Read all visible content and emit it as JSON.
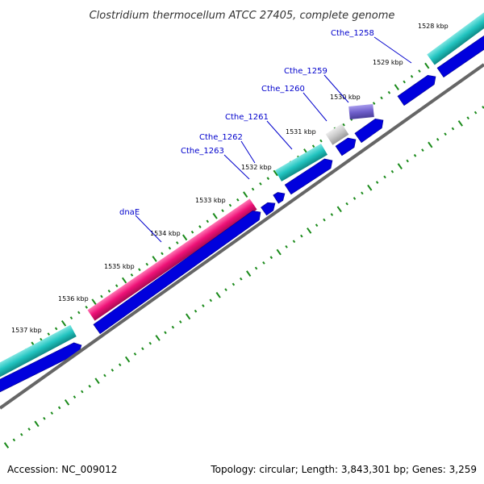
{
  "title": "Clostridium thermocellum ATCC 27405, complete genome",
  "footer": {
    "accession": "Accession: NC_009012",
    "info": "Topology: circular; Length: 3,843,301 bp; Genes: 3,259"
  },
  "ticks": [
    "1528 kbp",
    "1529 kbp",
    "1530 kbp",
    "1531 kbp",
    "1532 kbp",
    "1533 kbp",
    "1534 kbp",
    "1535 kbp",
    "1536 kbp",
    "1537 kbp"
  ],
  "genes": [
    "Cthe_1258",
    "Cthe_1259",
    "Cthe_1260",
    "Cthe_1261",
    "Cthe_1262",
    "Cthe_1263",
    "dnaE"
  ],
  "colors": {
    "cds": "#0000dd",
    "teal": "#22c4c0",
    "magenta": "#ee1177",
    "gray": "#c8c8c8",
    "purple": "#7060cc",
    "backbone": "#666666",
    "tick": "#1a8a1a",
    "label": "#0000cc"
  }
}
